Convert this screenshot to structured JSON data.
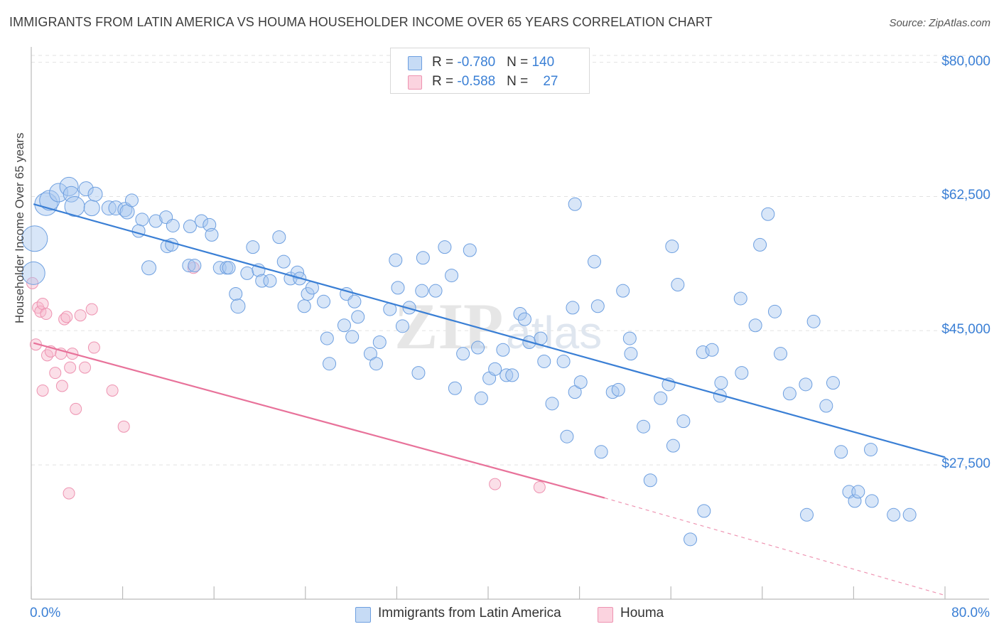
{
  "header": {
    "title": "IMMIGRANTS FROM LATIN AMERICA VS HOUMA HOUSEHOLDER INCOME OVER 65 YEARS CORRELATION CHART",
    "source": "Source: ZipAtlas.com"
  },
  "legend_top": {
    "rows": [
      {
        "r_label": "R = ",
        "r_value": "-0.780",
        "n_label": "N = ",
        "n_value": "140",
        "color": "#a8c8ef"
      },
      {
        "r_label": "R = ",
        "r_value": "-0.588",
        "n_label": "N = ",
        "n_value": "27",
        "color": "#f6b8cb"
      }
    ]
  },
  "legend_bottom": {
    "items": [
      {
        "label": "Immigrants from Latin America",
        "color": "#a8c8ef"
      },
      {
        "label": "Houma",
        "color": "#f6b8cb"
      }
    ]
  },
  "watermark": "ZIPatlas",
  "chart_data": {
    "type": "scatter",
    "title": "IMMIGRANTS FROM LATIN AMERICA VS HOUMA HOUSEHOLDER INCOME OVER 65 YEARS CORRELATION CHART",
    "xlabel": "",
    "ylabel": "Householder Income Over 65 years",
    "xlim": [
      0,
      80
    ],
    "ylim": [
      10000,
      82000
    ],
    "x_tick_labels": [
      "0.0%",
      "80.0%"
    ],
    "y_ticks": [
      27500,
      45000,
      62500,
      80000
    ],
    "y_tick_labels": [
      "$27,500",
      "$45,000",
      "$62,500",
      "$80,000"
    ],
    "grid": true,
    "colors": {
      "blue": "#3a7fd5",
      "blue_fill": "#a8c8ef",
      "pink": "#e8729a",
      "pink_fill": "#f6b8cb"
    },
    "series": [
      {
        "name": "Immigrants from Latin America",
        "color": "#3a7fd5",
        "trend": {
          "x": [
            0.2,
            80
          ],
          "y": [
            61500,
            28500
          ]
        },
        "points": [
          [
            0.3,
            57,
            18
          ],
          [
            0.2,
            52.5,
            16
          ],
          [
            1.3,
            61.5,
            16
          ],
          [
            1.6,
            62,
            14
          ],
          [
            2.4,
            63,
            13
          ],
          [
            3.3,
            63.8,
            13
          ],
          [
            3.5,
            62.8,
            11
          ],
          [
            4.8,
            63.5,
            10
          ],
          [
            3.8,
            61.2,
            14
          ],
          [
            5.3,
            61,
            11
          ],
          [
            5.6,
            62.8,
            10
          ],
          [
            6.8,
            61,
            10
          ],
          [
            7.4,
            61,
            10
          ],
          [
            8.2,
            60.8,
            10
          ],
          [
            8.4,
            60.5,
            10
          ],
          [
            8.8,
            62,
            9
          ],
          [
            9.7,
            59.5,
            9
          ],
          [
            9.4,
            58,
            9
          ],
          [
            10.9,
            59.3,
            9
          ],
          [
            11.8,
            59.8,
            9
          ],
          [
            10.3,
            53.2,
            10
          ],
          [
            11.9,
            56,
            9
          ],
          [
            12.3,
            56.2,
            9
          ],
          [
            12.4,
            58.7,
            9
          ],
          [
            13.8,
            53.5,
            9
          ],
          [
            13.9,
            58.6,
            9
          ],
          [
            14.9,
            59.3,
            9
          ],
          [
            15.6,
            58.8,
            9
          ],
          [
            15.8,
            57.5,
            9
          ],
          [
            14.3,
            53.5,
            9
          ],
          [
            16.5,
            53.2,
            9
          ],
          [
            17.1,
            53.2,
            9
          ],
          [
            17.3,
            53.2,
            9
          ],
          [
            17.9,
            49.8,
            9
          ],
          [
            18.1,
            48.2,
            10
          ],
          [
            18.9,
            52.5,
            9
          ],
          [
            19.4,
            55.9,
            9
          ],
          [
            19.9,
            52.9,
            9
          ],
          [
            20.2,
            51.5,
            9
          ],
          [
            20.9,
            51.5,
            9
          ],
          [
            21.7,
            57.2,
            9
          ],
          [
            22.1,
            54,
            9
          ],
          [
            22.7,
            51.8,
            9
          ],
          [
            23.3,
            52.6,
            9
          ],
          [
            23.9,
            48.2,
            9
          ],
          [
            24.2,
            49.8,
            9
          ],
          [
            24.6,
            50.6,
            9
          ],
          [
            25.6,
            48.8,
            9
          ],
          [
            25.9,
            44,
            9
          ],
          [
            26.1,
            40.7,
            9
          ],
          [
            27.4,
            45.7,
            9
          ],
          [
            27.6,
            49.8,
            9
          ],
          [
            28.3,
            48.8,
            9
          ],
          [
            28.1,
            44.2,
            9
          ],
          [
            28.6,
            46.8,
            9
          ],
          [
            29.7,
            42,
            9
          ],
          [
            30.2,
            40.7,
            9
          ],
          [
            30.5,
            43.5,
            9
          ],
          [
            31.4,
            47.8,
            9
          ],
          [
            31.9,
            54.2,
            9
          ],
          [
            32.1,
            50.6,
            9
          ],
          [
            32.5,
            45.6,
            9
          ],
          [
            33.1,
            48,
            9
          ],
          [
            33.9,
            39.5,
            9
          ],
          [
            34.2,
            50.2,
            9
          ],
          [
            34.3,
            54.5,
            9
          ],
          [
            35.4,
            50.2,
            9
          ],
          [
            36.2,
            55.9,
            9
          ],
          [
            36.8,
            52.2,
            9
          ],
          [
            37.1,
            37.5,
            9
          ],
          [
            37.8,
            42,
            9
          ],
          [
            38.4,
            55.5,
            9
          ],
          [
            39.1,
            42.8,
            9
          ],
          [
            39.4,
            36.2,
            9
          ],
          [
            40.1,
            38.8,
            9
          ],
          [
            40.6,
            40,
            9
          ],
          [
            41.3,
            42.5,
            9
          ],
          [
            41.6,
            39.2,
            9
          ],
          [
            42.1,
            39.2,
            9
          ],
          [
            42.8,
            47.2,
            9
          ],
          [
            43.2,
            46.5,
            9
          ],
          [
            43.6,
            43.5,
            9
          ],
          [
            44.6,
            44,
            9
          ],
          [
            44.9,
            41,
            9
          ],
          [
            45.6,
            35.5,
            9
          ],
          [
            46.6,
            41,
            9
          ],
          [
            46.9,
            31.2,
            9
          ],
          [
            47.4,
            48,
            9
          ],
          [
            47.6,
            37,
            9
          ],
          [
            48.1,
            38.3,
            9
          ],
          [
            49.3,
            54,
            9
          ],
          [
            49.6,
            48.2,
            9
          ],
          [
            49.9,
            29.2,
            9
          ],
          [
            50.9,
            37,
            9
          ],
          [
            51.4,
            37.3,
            9
          ],
          [
            51.8,
            50.2,
            9
          ],
          [
            52.4,
            44,
            9
          ],
          [
            52.5,
            42,
            9
          ],
          [
            53.6,
            32.5,
            9
          ],
          [
            54.2,
            25.5,
            9
          ],
          [
            55.1,
            36.2,
            9
          ],
          [
            55.8,
            38,
            9
          ],
          [
            56.2,
            30,
            9
          ],
          [
            56.6,
            51,
            9
          ],
          [
            56.1,
            56,
            9
          ],
          [
            57.1,
            33.2,
            9
          ],
          [
            58.8,
            42.2,
            9
          ],
          [
            58.9,
            21.5,
            9
          ],
          [
            59.6,
            42.5,
            9
          ],
          [
            60.4,
            38.2,
            9
          ],
          [
            60.3,
            36.5,
            9
          ],
          [
            62.1,
            49.2,
            9
          ],
          [
            62.2,
            39.5,
            9
          ],
          [
            63.4,
            45.7,
            9
          ],
          [
            63.8,
            56.2,
            9
          ],
          [
            64.5,
            60.2,
            9
          ],
          [
            65.1,
            47.5,
            9
          ],
          [
            65.6,
            42,
            9
          ],
          [
            66.4,
            36.8,
            9
          ],
          [
            67.8,
            38,
            9
          ],
          [
            67.9,
            21,
            9
          ],
          [
            68.5,
            46.2,
            9
          ],
          [
            69.6,
            35.2,
            9
          ],
          [
            70.2,
            38.2,
            9
          ],
          [
            70.9,
            29.2,
            9
          ],
          [
            71.6,
            24,
            9
          ],
          [
            72.1,
            22.8,
            9
          ],
          [
            72.4,
            24,
            9
          ],
          [
            73.5,
            29.5,
            9
          ],
          [
            73.6,
            22.8,
            9
          ],
          [
            75.5,
            21,
            9
          ],
          [
            76.9,
            21,
            9
          ],
          [
            47.6,
            61.5,
            9
          ],
          [
            57.7,
            17.8,
            9
          ],
          [
            23.5,
            51.8,
            9
          ]
        ]
      },
      {
        "name": "Houma",
        "color": "#e8729a",
        "trend": {
          "x": [
            0.2,
            50.2
          ],
          "y": [
            43.4,
            23.2
          ],
          "dashed_to": {
            "x": [
              50.2,
              80
            ],
            "y": [
              23.2,
              10.5
            ]
          }
        },
        "points": [
          [
            0.1,
            51.2
          ],
          [
            0.4,
            43.2
          ],
          [
            0.6,
            48
          ],
          [
            0.8,
            47.5
          ],
          [
            1.0,
            48.5
          ],
          [
            1.0,
            37.2
          ],
          [
            1.3,
            47.2
          ],
          [
            1.4,
            41.8
          ],
          [
            1.7,
            42.3
          ],
          [
            2.1,
            39.5
          ],
          [
            2.6,
            42
          ],
          [
            2.7,
            37.8
          ],
          [
            2.9,
            46.5
          ],
          [
            3.1,
            46.8
          ],
          [
            3.3,
            23.8
          ],
          [
            3.4,
            40.2
          ],
          [
            3.6,
            42
          ],
          [
            3.9,
            34.8
          ],
          [
            4.3,
            47
          ],
          [
            4.7,
            40.2
          ],
          [
            5.3,
            47.8
          ],
          [
            5.5,
            42.8
          ],
          [
            7.1,
            37.2
          ],
          [
            8.1,
            32.5
          ],
          [
            14.2,
            53.2
          ],
          [
            40.6,
            25
          ],
          [
            44.5,
            24.6
          ]
        ]
      }
    ]
  }
}
